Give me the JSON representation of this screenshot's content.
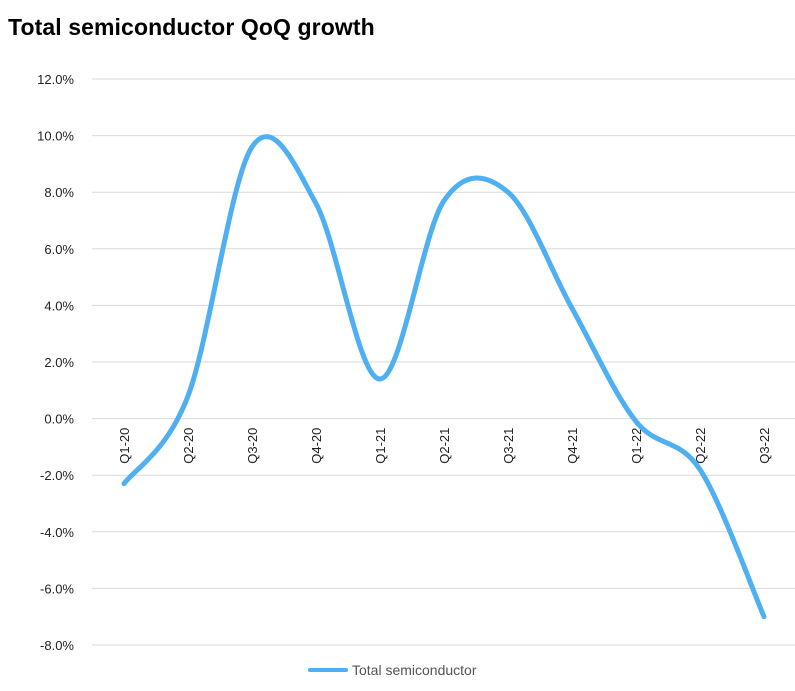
{
  "chart_data": {
    "type": "line",
    "title": "Total semiconductor QoQ growth",
    "categories": [
      "Q1-20",
      "Q2-20",
      "Q3-20",
      "Q4-20",
      "Q1-21",
      "Q2-21",
      "Q3-21",
      "Q4-21",
      "Q1-22",
      "Q2-22",
      "Q3-22"
    ],
    "series": [
      {
        "name": "Total semiconductor",
        "values": [
          -2.3,
          0.8,
          9.6,
          7.6,
          1.4,
          7.7,
          8.0,
          3.9,
          -0.1,
          -1.8,
          -7.0
        ]
      }
    ],
    "ylim": [
      -8.0,
      12.0
    ],
    "yticks": [
      "12.0%",
      "10.0%",
      "8.0%",
      "6.0%",
      "4.0%",
      "2.0%",
      "0.0%",
      "-2.0%",
      "-4.0%",
      "-6.0%",
      "-8.0%"
    ],
    "y_unit": "%",
    "grid": true,
    "smooth": true,
    "legend_position": "bottom",
    "line_color": "#4eaff2"
  }
}
